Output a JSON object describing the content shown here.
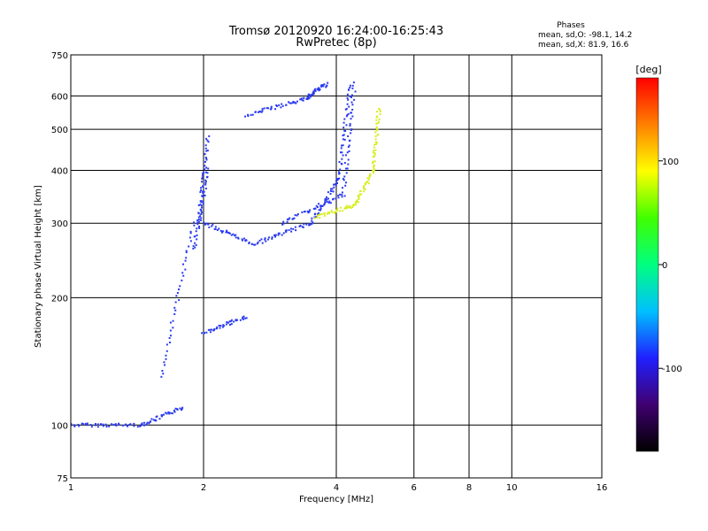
{
  "chart_data": {
    "type": "scatter",
    "title": "Tromsø 20120920 16:24:00-16:25:43",
    "subtitle": "RwPretec (8p)",
    "xlabel": "Frequency [MHz]",
    "ylabel": "Stationary phase Virtual Height [km]",
    "xscale": "log",
    "yscale": "log",
    "xlim": [
      1,
      16
    ],
    "ylim": [
      75,
      750
    ],
    "xticks": [
      "1",
      "2",
      "4",
      "6",
      "8",
      "10",
      "16"
    ],
    "yticks": [
      "75",
      "100",
      "200",
      "300",
      "400",
      "500",
      "600",
      "750"
    ],
    "grid": true,
    "stats": {
      "heading": "Phases",
      "o_line": "mean, sd,O: -98.1, 14.2",
      "x_line": "mean, sd,X:  81.9, 16.6"
    },
    "colorbar": {
      "label": "[deg]",
      "range": [
        -180,
        180
      ],
      "ticks": [
        "100",
        "0",
        "-100"
      ],
      "colormap": [
        "#000000",
        "#400070",
        "#2020ff",
        "#00c0ff",
        "#00ff80",
        "#40ff00",
        "#ffff00",
        "#ff8000",
        "#ff0000"
      ]
    },
    "series": [
      {
        "name": "O",
        "color": "#2a3af0",
        "segments": [
          {
            "f0": 1.0,
            "h0": 100,
            "f1": 1.45,
            "h1": 100
          },
          {
            "f0": 1.45,
            "h0": 100,
            "f1": 1.8,
            "h1": 110
          },
          {
            "f0": 1.6,
            "h0": 130,
            "f1": 1.9,
            "h1": 300
          },
          {
            "f0": 1.9,
            "h0": 260,
            "f1": 2.05,
            "h1": 400
          },
          {
            "f0": 1.95,
            "h0": 300,
            "f1": 2.05,
            "h1": 480
          },
          {
            "f0": 2.0,
            "h0": 165,
            "f1": 2.5,
            "h1": 180
          },
          {
            "f0": 2.0,
            "h0": 300,
            "f1": 2.6,
            "h1": 268
          },
          {
            "f0": 2.6,
            "h0": 268,
            "f1": 3.5,
            "h1": 300
          },
          {
            "f0": 3.5,
            "h0": 300,
            "f1": 4.05,
            "h1": 380
          },
          {
            "f0": 4.05,
            "h0": 380,
            "f1": 4.3,
            "h1": 640
          },
          {
            "f0": 3.0,
            "h0": 300,
            "f1": 4.15,
            "h1": 350
          },
          {
            "f0": 4.15,
            "h0": 350,
            "f1": 4.4,
            "h1": 640
          },
          {
            "f0": 2.5,
            "h0": 540,
            "f1": 3.4,
            "h1": 590
          },
          {
            "f0": 3.4,
            "h0": 590,
            "f1": 3.8,
            "h1": 640
          }
        ]
      },
      {
        "name": "X",
        "color": "#d8ee20",
        "segments": [
          {
            "f0": 3.6,
            "h0": 310,
            "f1": 4.4,
            "h1": 330
          },
          {
            "f0": 4.4,
            "h0": 330,
            "f1": 4.85,
            "h1": 400
          },
          {
            "f0": 4.85,
            "h0": 400,
            "f1": 5.0,
            "h1": 560
          }
        ]
      }
    ]
  }
}
